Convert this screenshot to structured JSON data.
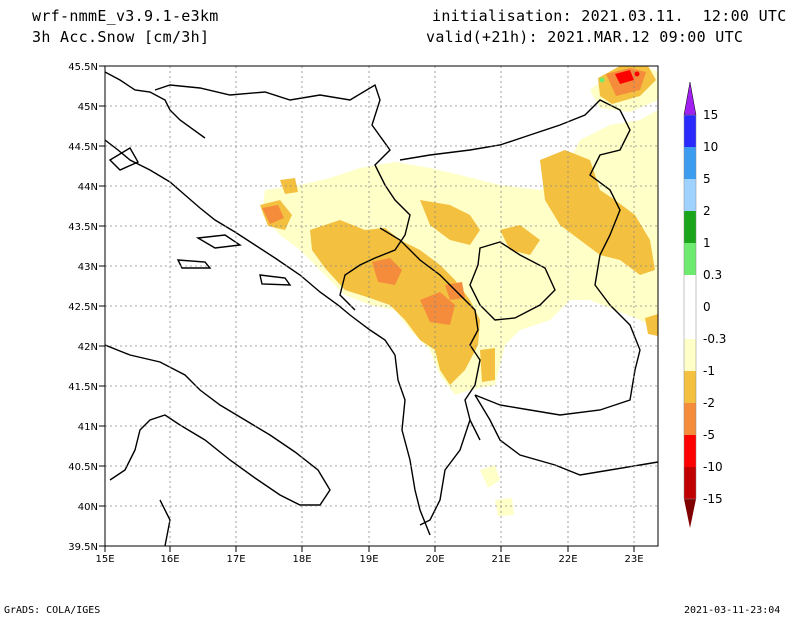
{
  "header": {
    "model": "wrf-nmmE_v3.9.1-e3km",
    "field": "3h Acc.Snow [cm/3h]",
    "init": "initialisation: 2021.03.11.  12:00 UTC",
    "valid": "valid(+21h): 2021.MAR.12 09:00 UTC"
  },
  "footer": {
    "credit": "GrADS: COLA/IGES",
    "timestamp": "2021-03-11-23:04"
  },
  "map": {
    "lon_labels": [
      "15E",
      "16E",
      "17E",
      "18E",
      "19E",
      "20E",
      "21E",
      "22E",
      "23E"
    ],
    "lat_labels": [
      "45.5N",
      "45N",
      "44.5N",
      "44N",
      "43.5N",
      "43N",
      "42.5N",
      "42N",
      "41.5N",
      "41N",
      "40.5N",
      "40N",
      "39.5N"
    ],
    "grid": true
  },
  "colorbar": {
    "labels": [
      "15",
      "10",
      "5",
      "2",
      "1",
      "0.3",
      "0",
      "-0.3",
      "-1",
      "-2",
      "-5",
      "-10",
      "-15"
    ],
    "colors": [
      "#a020f0",
      "#2a2aff",
      "#3c9cf0",
      "#a0d2ff",
      "#1aa51a",
      "#6eeb6e",
      "#ffffff",
      "#ffffc8",
      "#f4c040",
      "#f58c3c",
      "#ff0000",
      "#c00000",
      "#800000"
    ]
  }
}
